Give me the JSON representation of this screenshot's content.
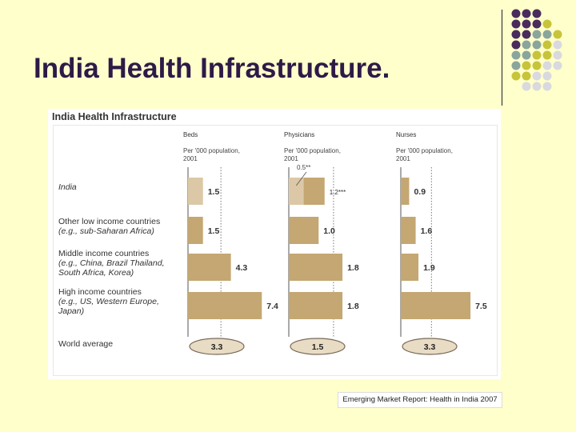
{
  "slide": {
    "title": "India Health Infrastructure.",
    "source": "Emerging Market Report: Health in India 2007"
  },
  "colors": {
    "background": "#ffffcc",
    "title": "#2e1a47",
    "bar": "#c4a772",
    "india_bar_light": "#dcc8a6",
    "dot_purple": "#4a2c5c",
    "dot_teal": "#8aa69c",
    "dot_olive": "#c7c43a",
    "dot_grey": "#d9d9df"
  },
  "chart_data": {
    "type": "bar",
    "title": "India Health Infrastructure",
    "categories": [
      [
        "India"
      ],
      [
        "Other low income countries",
        "(e.g., sub-Saharan Africa)"
      ],
      [
        "Middle income countries",
        "(e.g., China, Brazil Thailand,",
        "South Africa, Korea)"
      ],
      [
        "High income countries",
        "(e.g., US, Western Europe,",
        "Japan)"
      ]
    ],
    "world_average_label": "World average",
    "series": [
      {
        "name": "Beds",
        "subtitle": [
          "Per '000 population,",
          "2001"
        ],
        "values": [
          1.5,
          1.5,
          4.3,
          7.4
        ],
        "labels": [
          "1.5",
          "1.5",
          "4.3",
          "7.4"
        ],
        "world_average": "3.3",
        "max": 8.5
      },
      {
        "name": "Physicians",
        "subtitle": [
          "Per '000 population,",
          "2001"
        ],
        "values": [
          1.2,
          1.0,
          1.8,
          1.8
        ],
        "labels": [
          "1.2***",
          "1.0",
          "1.8",
          "1.8"
        ],
        "india_inner_value": 0.5,
        "india_inner_label": "0.5**",
        "world_average": "1.5",
        "max": 2.2
      },
      {
        "name": "Nurses",
        "subtitle": [
          "Per '000 population,",
          "2001"
        ],
        "values": [
          0.9,
          1.6,
          1.9,
          7.5
        ],
        "labels": [
          "0.9",
          "1.6",
          "1.9",
          "7.5"
        ],
        "world_average": "3.3",
        "max": 9.3
      }
    ]
  }
}
